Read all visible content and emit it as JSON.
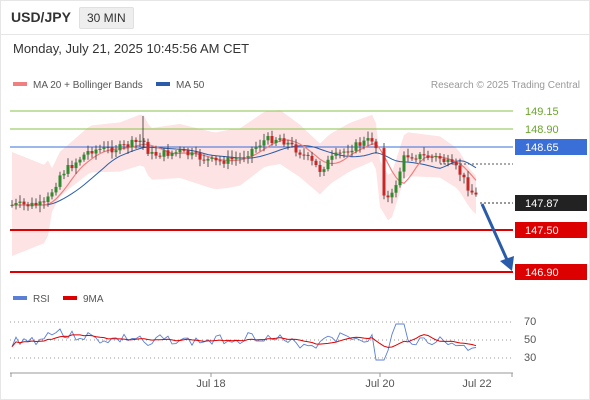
{
  "header": {
    "pair": "USD/JPY",
    "timeframe": "30 MIN"
  },
  "datetime": "Monday, July 21, 2025 10:45:56 AM CET",
  "legend": {
    "ma20_label": "MA 20 + Bollinger Bands",
    "ma50_label": "MA 50",
    "research": "Research © 2025 Trading Central"
  },
  "levels": {
    "resistance2": "149.15",
    "resistance1": "148.90",
    "pivot": "148.65",
    "current": "147.87",
    "support1": "147.50",
    "support2": "146.90"
  },
  "rsi_legend": {
    "rsi_label": "RSI",
    "ma_label": "9MA"
  },
  "rsi_axis": [
    "70",
    "50",
    "30"
  ],
  "x_axis": [
    "Jul 18",
    "Jul 20",
    "Jul 22"
  ],
  "colors": {
    "ma20": "#f08080",
    "ma50": "#2a5caa",
    "pivot": "#3a6fd8",
    "support": "#dd0000",
    "resistance": "#8ac34a",
    "arrow": "#2a5caa",
    "band": "#fde0e0",
    "up": "#2e8b2e",
    "down": "#c62828"
  }
}
